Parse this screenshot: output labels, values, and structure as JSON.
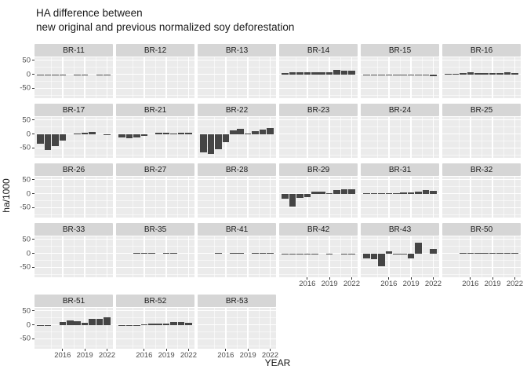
{
  "chart_data": {
    "type": "bar",
    "title_line1": "HA difference between",
    "title_line2": "new original and previous normalized soy deforestation",
    "xlabel": "YEAR",
    "ylabel": "ha/1000",
    "x": [
      2013,
      2014,
      2015,
      2016,
      2017,
      2018,
      2019,
      2020,
      2021,
      2022
    ],
    "x_ticks": [
      2016,
      2019,
      2022
    ],
    "x_tick_labels": [
      "2016",
      "2019",
      "2022"
    ],
    "y_ticks": [
      50,
      0,
      -50
    ],
    "y_tick_labels": [
      "50",
      "0",
      "-50"
    ],
    "y_minor_ticks": [
      25,
      -25,
      -75
    ],
    "x_minor_ticks": [
      2014.5,
      2017.5,
      2020.5
    ],
    "ylim": [
      -85,
      60
    ],
    "xlim": [
      2012.2,
      2022.8
    ],
    "legend": "none",
    "grid": "on",
    "panel_bg": "#ebebeb",
    "strip_bg": "#d6d6d6",
    "bar_color": "#454545",
    "axis_text_color": "#4d4d4d",
    "ncols": 6,
    "facets": [
      {
        "label": "BR-11",
        "values": [
          -1,
          -1,
          -1,
          -0.5,
          0,
          -1,
          -1.5,
          0,
          -2,
          -2
        ]
      },
      {
        "label": "BR-12",
        "values": null
      },
      {
        "label": "BR-13",
        "values": null
      },
      {
        "label": "BR-14",
        "values": [
          3,
          6,
          6,
          8,
          6,
          6,
          7,
          15,
          12,
          12
        ]
      },
      {
        "label": "BR-15",
        "values": [
          -1,
          -2,
          -2,
          -4,
          -3,
          -3,
          -1,
          -5,
          -5,
          -8
        ]
      },
      {
        "label": "BR-16",
        "values": [
          1,
          2,
          3,
          6,
          5,
          4,
          4,
          5,
          7,
          3
        ]
      },
      {
        "label": "BR-17",
        "values": [
          -35,
          -58,
          -42,
          -25,
          0,
          1,
          3,
          6,
          0,
          -3
        ]
      },
      {
        "label": "BR-21",
        "values": [
          -12,
          -14,
          -12,
          -8,
          0,
          3,
          4,
          1,
          4,
          4
        ]
      },
      {
        "label": "BR-22",
        "values": [
          -65,
          -72,
          -55,
          -30,
          12,
          18,
          2,
          10,
          14,
          20
        ]
      },
      {
        "label": "BR-23",
        "values": null
      },
      {
        "label": "BR-24",
        "values": null
      },
      {
        "label": "BR-25",
        "values": null
      },
      {
        "label": "BR-26",
        "values": null
      },
      {
        "label": "BR-27",
        "values": null
      },
      {
        "label": "BR-28",
        "values": null
      },
      {
        "label": "BR-29",
        "values": [
          -18,
          -45,
          -15,
          -12,
          6,
          8,
          2,
          12,
          16,
          15
        ]
      },
      {
        "label": "BR-31",
        "values": [
          1,
          1,
          2,
          2,
          2,
          3,
          3,
          8,
          12,
          10
        ]
      },
      {
        "label": "BR-32",
        "values": null
      },
      {
        "label": "BR-33",
        "values": null
      },
      {
        "label": "BR-35",
        "values": [
          0,
          0,
          0.5,
          0.5,
          0.5,
          0,
          1,
          1,
          0,
          0
        ]
      },
      {
        "label": "BR-41",
        "values": [
          0,
          0,
          2,
          0,
          1,
          1,
          0,
          2,
          2,
          2
        ]
      },
      {
        "label": "BR-42",
        "values": [
          -2,
          -2,
          -3,
          -2,
          -2,
          0,
          -2,
          0,
          -1,
          -1
        ]
      },
      {
        "label": "BR-43",
        "values": [
          -18,
          -20,
          -45,
          8,
          -3,
          -2,
          -18,
          38,
          0,
          15
        ]
      },
      {
        "label": "BR-50",
        "values": [
          0,
          0,
          1,
          1,
          2,
          2,
          2,
          2,
          1,
          2
        ]
      },
      {
        "label": "BR-51",
        "values": [
          -5,
          -4,
          0,
          10,
          14,
          12,
          8,
          22,
          20,
          27
        ]
      },
      {
        "label": "BR-52",
        "values": [
          -4,
          -5,
          -2,
          2,
          3,
          4,
          5,
          9,
          9,
          6
        ]
      },
      {
        "label": "BR-53",
        "values": null
      }
    ]
  }
}
